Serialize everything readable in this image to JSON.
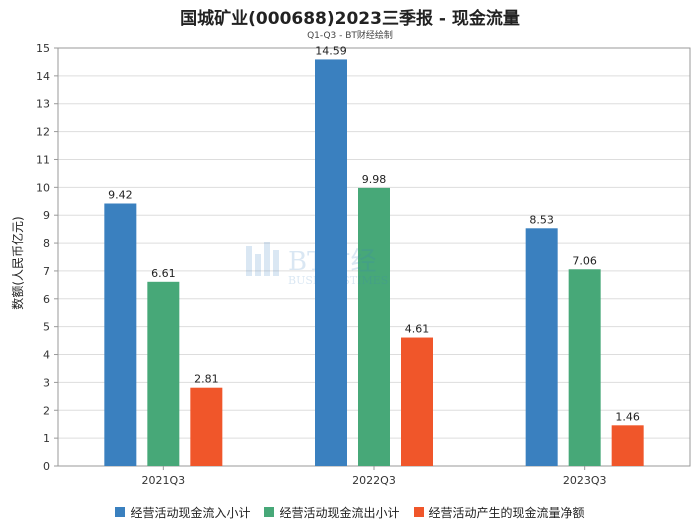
{
  "chart_data": {
    "type": "bar",
    "title": "国城矿业(000688)2023三季报 - 现金流量",
    "subtitle": "Q1-Q3 - BT财经绘制",
    "ylabel": "数额(人民币亿元)",
    "xlabel": "",
    "ylim": [
      0,
      15
    ],
    "yticks": [
      0,
      1,
      2,
      3,
      4,
      5,
      6,
      7,
      8,
      9,
      10,
      11,
      12,
      13,
      14,
      15
    ],
    "grid": true,
    "legend": "bottom",
    "categories": [
      "2021Q3",
      "2022Q3",
      "2023Q3"
    ],
    "series": [
      {
        "name": "经营活动现金流入小计",
        "color": "#3a80bf",
        "values": [
          9.42,
          14.59,
          8.53
        ],
        "labels": [
          "9.42",
          "14.59",
          "8.53"
        ]
      },
      {
        "name": "经营活动现金流出小计",
        "color": "#47a878",
        "values": [
          6.61,
          9.98,
          7.06
        ],
        "labels": [
          "6.61",
          "9.98",
          "7.06"
        ]
      },
      {
        "name": "经营活动产生的现金流量净额",
        "color": "#f0562a",
        "values": [
          2.81,
          4.61,
          1.46
        ],
        "labels": [
          "2.81",
          "4.61",
          "1.46"
        ]
      }
    ]
  },
  "watermark": {
    "brand": "BT财经",
    "tagline": "BUSINESSTIMES"
  }
}
